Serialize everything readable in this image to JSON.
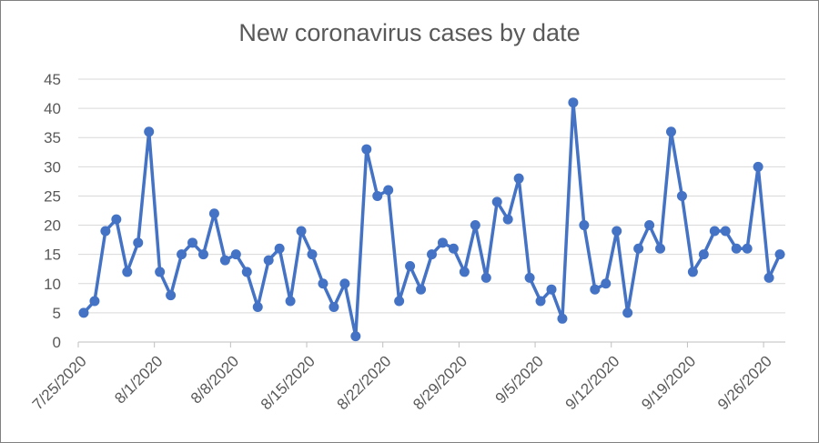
{
  "chart_data": {
    "type": "line",
    "title": "New coronavirus cases by date",
    "xlabel": "",
    "ylabel": "",
    "ylim": [
      0,
      45
    ],
    "y_ticks": [
      0,
      5,
      10,
      15,
      20,
      25,
      30,
      35,
      40,
      45
    ],
    "x_tick_labels": [
      "7/25/2020",
      "8/1/2020",
      "8/8/2020",
      "8/15/2020",
      "8/22/2020",
      "8/29/2020",
      "9/5/2020",
      "9/12/2020",
      "9/19/2020",
      "9/26/2020"
    ],
    "grid": "horizontal",
    "legend": "none",
    "colors": {
      "line": "#4472C4",
      "grid": "#D9D9D9",
      "text": "#595959"
    },
    "series": [
      {
        "x": [
          "7/25/2020",
          "7/26/2020",
          "7/27/2020",
          "7/28/2020",
          "7/29/2020",
          "7/30/2020",
          "7/31/2020",
          "8/1/2020",
          "8/2/2020",
          "8/3/2020",
          "8/4/2020",
          "8/5/2020",
          "8/6/2020",
          "8/7/2020",
          "8/8/2020",
          "8/9/2020",
          "8/10/2020",
          "8/11/2020",
          "8/12/2020",
          "8/13/2020",
          "8/14/2020",
          "8/15/2020",
          "8/16/2020",
          "8/17/2020",
          "8/18/2020",
          "8/19/2020",
          "8/20/2020",
          "8/21/2020",
          "8/22/2020",
          "8/23/2020",
          "8/24/2020",
          "8/25/2020",
          "8/26/2020",
          "8/27/2020",
          "8/28/2020",
          "8/29/2020",
          "8/30/2020",
          "8/31/2020",
          "9/1/2020",
          "9/2/2020",
          "9/3/2020",
          "9/4/2020",
          "9/5/2020",
          "9/6/2020",
          "9/7/2020",
          "9/8/2020",
          "9/9/2020",
          "9/10/2020",
          "9/11/2020",
          "9/12/2020",
          "9/13/2020",
          "9/14/2020",
          "9/15/2020",
          "9/16/2020",
          "9/17/2020",
          "9/18/2020",
          "9/19/2020",
          "9/20/2020",
          "9/21/2020",
          "9/22/2020",
          "9/23/2020",
          "9/24/2020",
          "9/25/2020",
          "9/26/2020",
          "9/27/2020"
        ],
        "values": [
          5,
          7,
          19,
          21,
          12,
          17,
          36,
          12,
          8,
          15,
          17,
          15,
          22,
          14,
          15,
          12,
          6,
          14,
          16,
          7,
          19,
          15,
          10,
          6,
          10,
          1,
          33,
          25,
          26,
          7,
          13,
          9,
          15,
          17,
          16,
          12,
          20,
          11,
          24,
          21,
          28,
          11,
          7,
          9,
          4,
          41,
          20,
          9,
          10,
          19,
          5,
          16,
          20,
          16,
          36,
          25,
          12,
          15,
          19,
          19,
          16,
          16,
          30,
          11,
          15
        ]
      }
    ]
  }
}
